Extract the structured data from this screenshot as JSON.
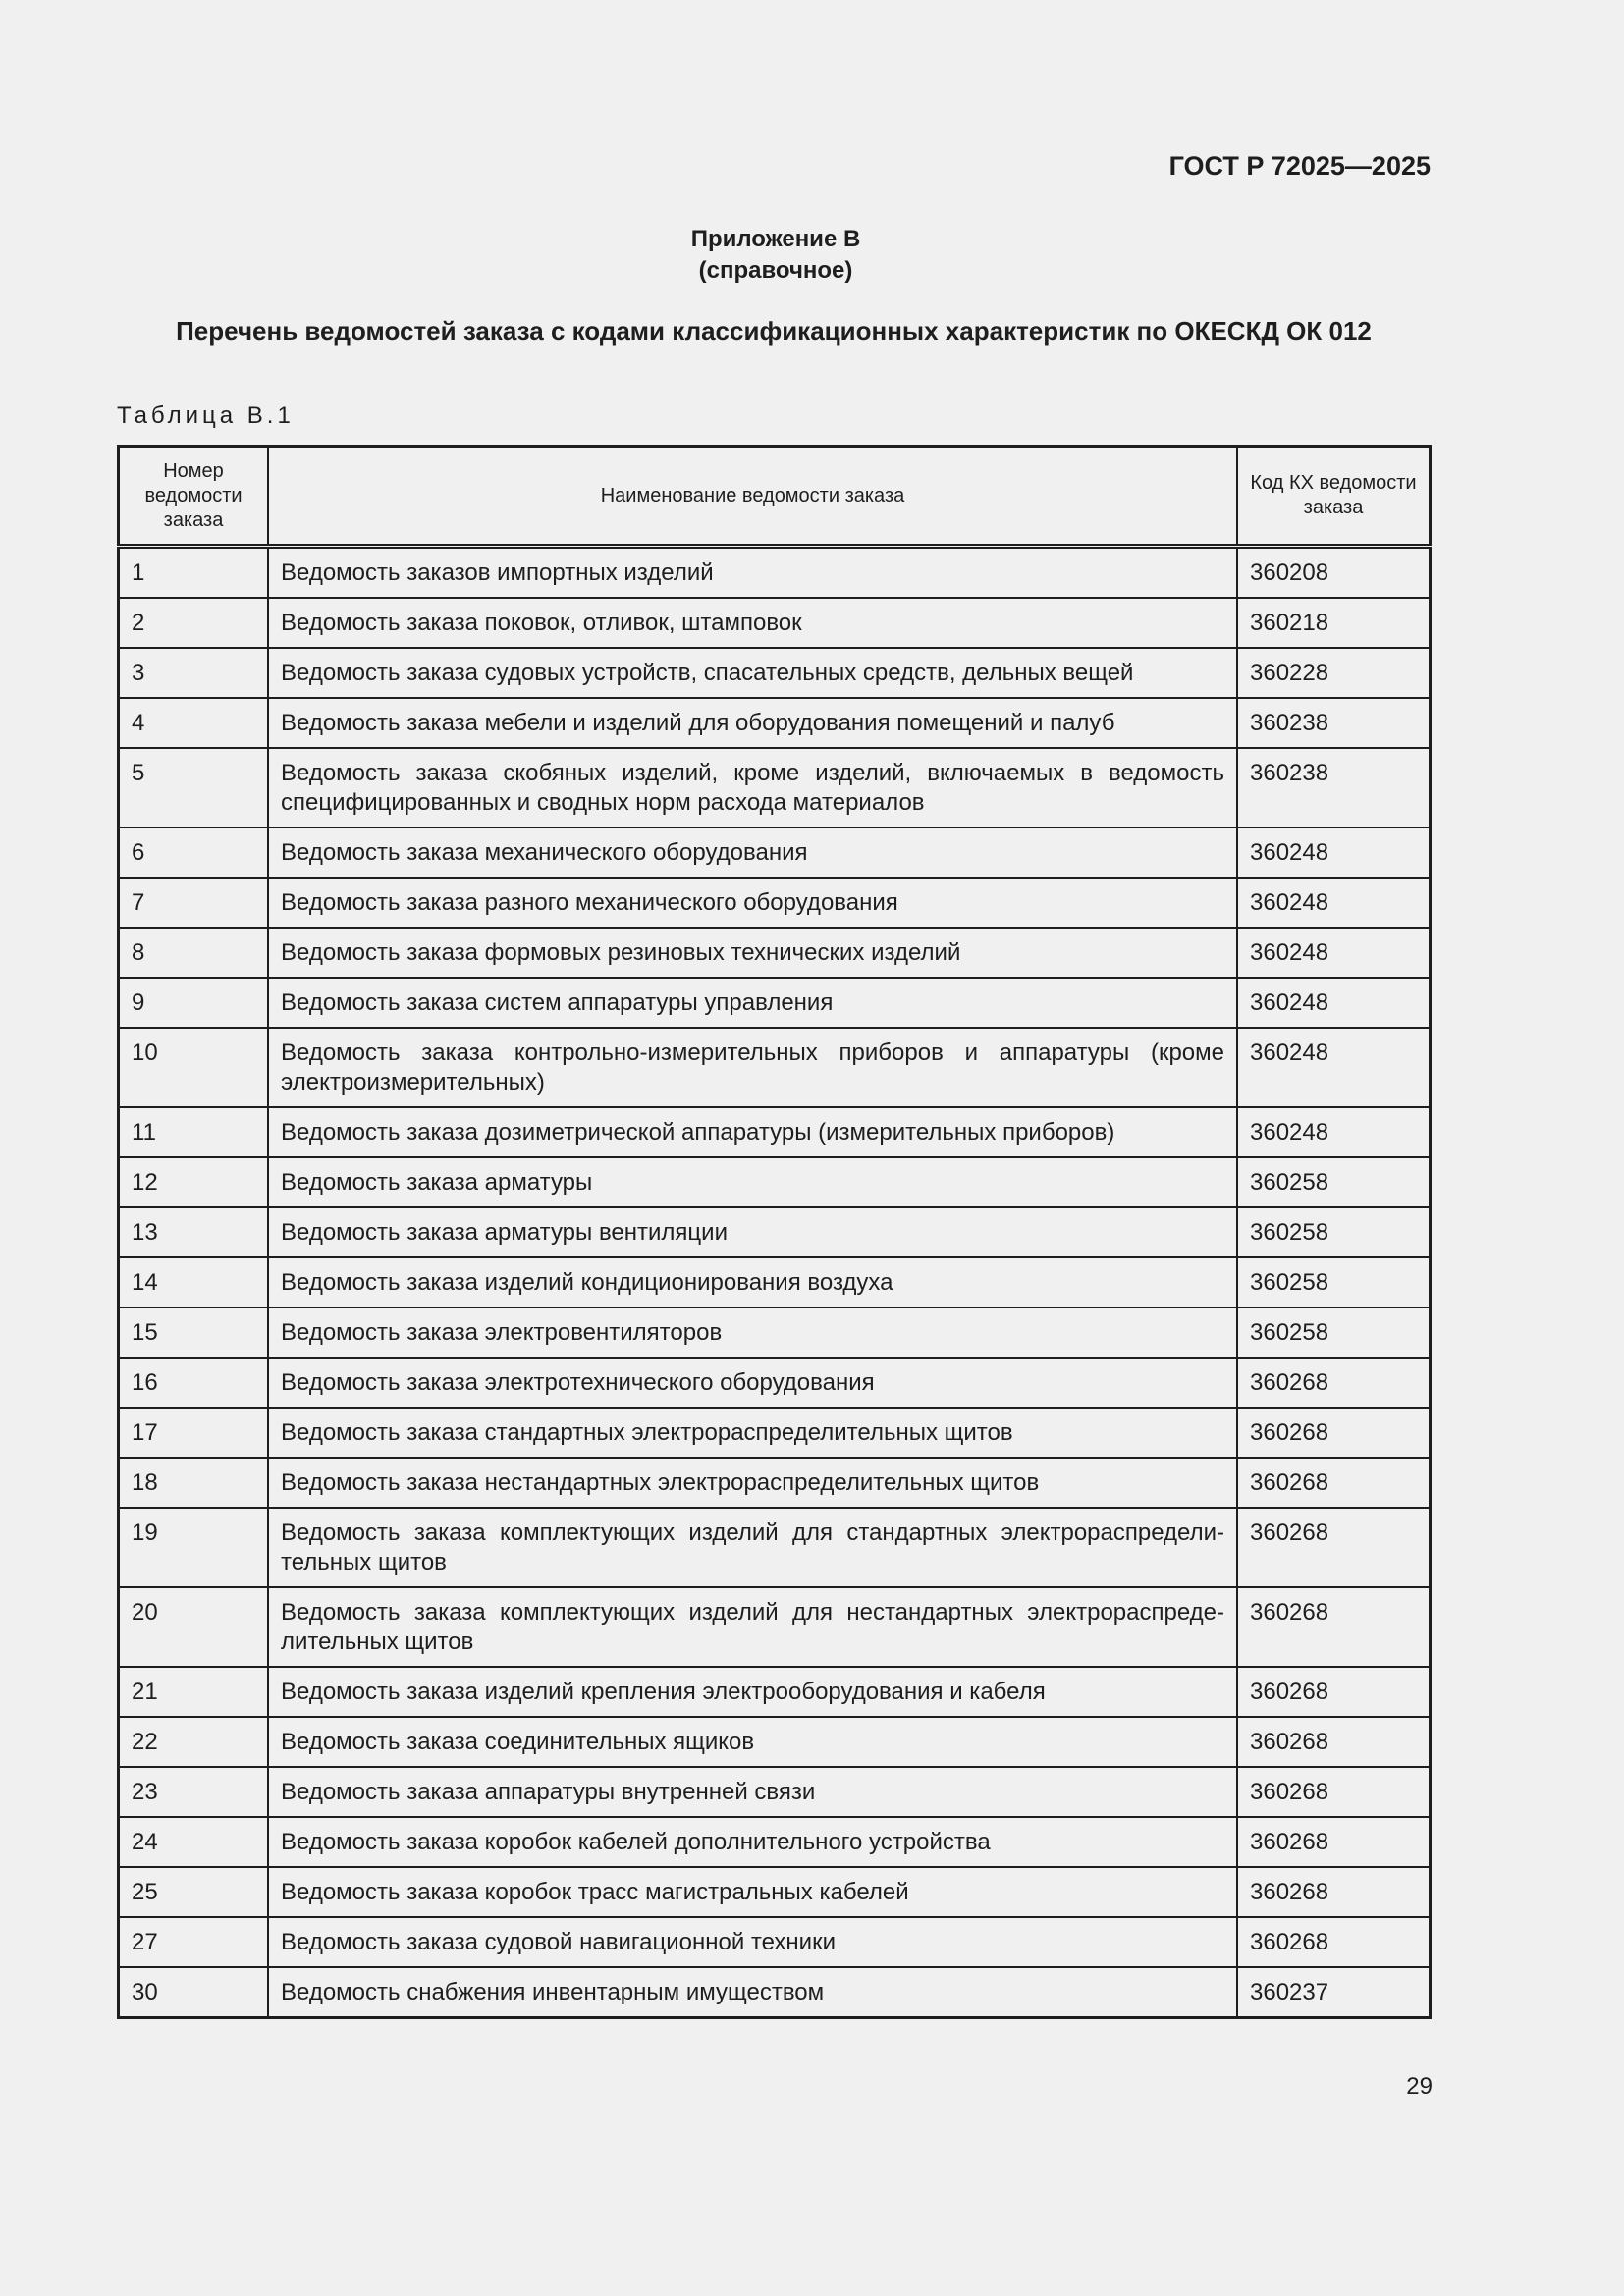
{
  "header": {
    "standard": "ГОСТ Р 72025—2025"
  },
  "appendix": {
    "title": "Приложение В",
    "kind": "(справочное)"
  },
  "title": "Перечень ведомостей заказа с кодами классификационных характеристик по ОКЕСКД ОК 012",
  "table_label": "Таблица В.1",
  "table": {
    "columns": [
      "Номер ведомости заказа",
      "Наименование ведомости заказа",
      "Код КХ ведомости заказа"
    ],
    "rows": [
      [
        "1",
        "Ведомость заказов импортных изделий",
        "360208"
      ],
      [
        "2",
        "Ведомость заказа поковок, отливок, штамповок",
        "360218"
      ],
      [
        "3",
        "Ведомость заказа судовых устройств, спасательных средств, дельных вещей",
        "360228"
      ],
      [
        "4",
        "Ведомость заказа мебели и изделий для оборудования помещений и палуб",
        "360238"
      ],
      [
        "5",
        "Ведомость заказа скобяных изделий, кроме изделий, включаемых в ведомость специфицированных и сводных норм расхода материалов",
        "360238"
      ],
      [
        "6",
        "Ведомость заказа механического оборудования",
        "360248"
      ],
      [
        "7",
        "Ведомость заказа разного механического оборудования",
        "360248"
      ],
      [
        "8",
        "Ведомость заказа формовых резиновых технических изделий",
        "360248"
      ],
      [
        "9",
        "Ведомость заказа систем аппаратуры управления",
        "360248"
      ],
      [
        "10",
        "Ведомость заказа контрольно-измерительных приборов и аппаратуры (кроме электроизмерительных)",
        "360248"
      ],
      [
        "11",
        "Ведомость заказа дозиметрической аппаратуры (измерительных приборов)",
        "360248"
      ],
      [
        "12",
        "Ведомость заказа арматуры",
        "360258"
      ],
      [
        "13",
        "Ведомость заказа арматуры вентиляции",
        "360258"
      ],
      [
        "14",
        "Ведомость заказа изделий кондиционирования воздуха",
        "360258"
      ],
      [
        "15",
        "Ведомость заказа электровентиляторов",
        "360258"
      ],
      [
        "16",
        "Ведомость заказа электротехнического оборудования",
        "360268"
      ],
      [
        "17",
        "Ведомость заказа стандартных электрораспределительных щитов",
        "360268"
      ],
      [
        "18",
        "Ведомость заказа нестандартных электрораспределительных щитов",
        "360268"
      ],
      [
        "19",
        "Ведомость заказа комплектующих изделий для стандартных электрораспредели-тельных щитов",
        "360268"
      ],
      [
        "20",
        "Ведомость заказа комплектующих изделий для нестандартных электрораспреде-лительных щитов",
        "360268"
      ],
      [
        "21",
        "Ведомость заказа изделий крепления электрооборудования и кабеля",
        "360268"
      ],
      [
        "22",
        "Ведомость заказа соединительных ящиков",
        "360268"
      ],
      [
        "23",
        "Ведомость заказа аппаратуры внутренней связи",
        "360268"
      ],
      [
        "24",
        "Ведомость заказа коробок кабелей дополнительного устройства",
        "360268"
      ],
      [
        "25",
        "Ведомость заказа коробок трасс магистральных кабелей",
        "360268"
      ],
      [
        "27",
        "Ведомость заказа судовой навигационной техники",
        "360268"
      ],
      [
        "30",
        "Ведомость снабжения инвентарным имуществом",
        "360237"
      ]
    ]
  },
  "page_number": "29"
}
